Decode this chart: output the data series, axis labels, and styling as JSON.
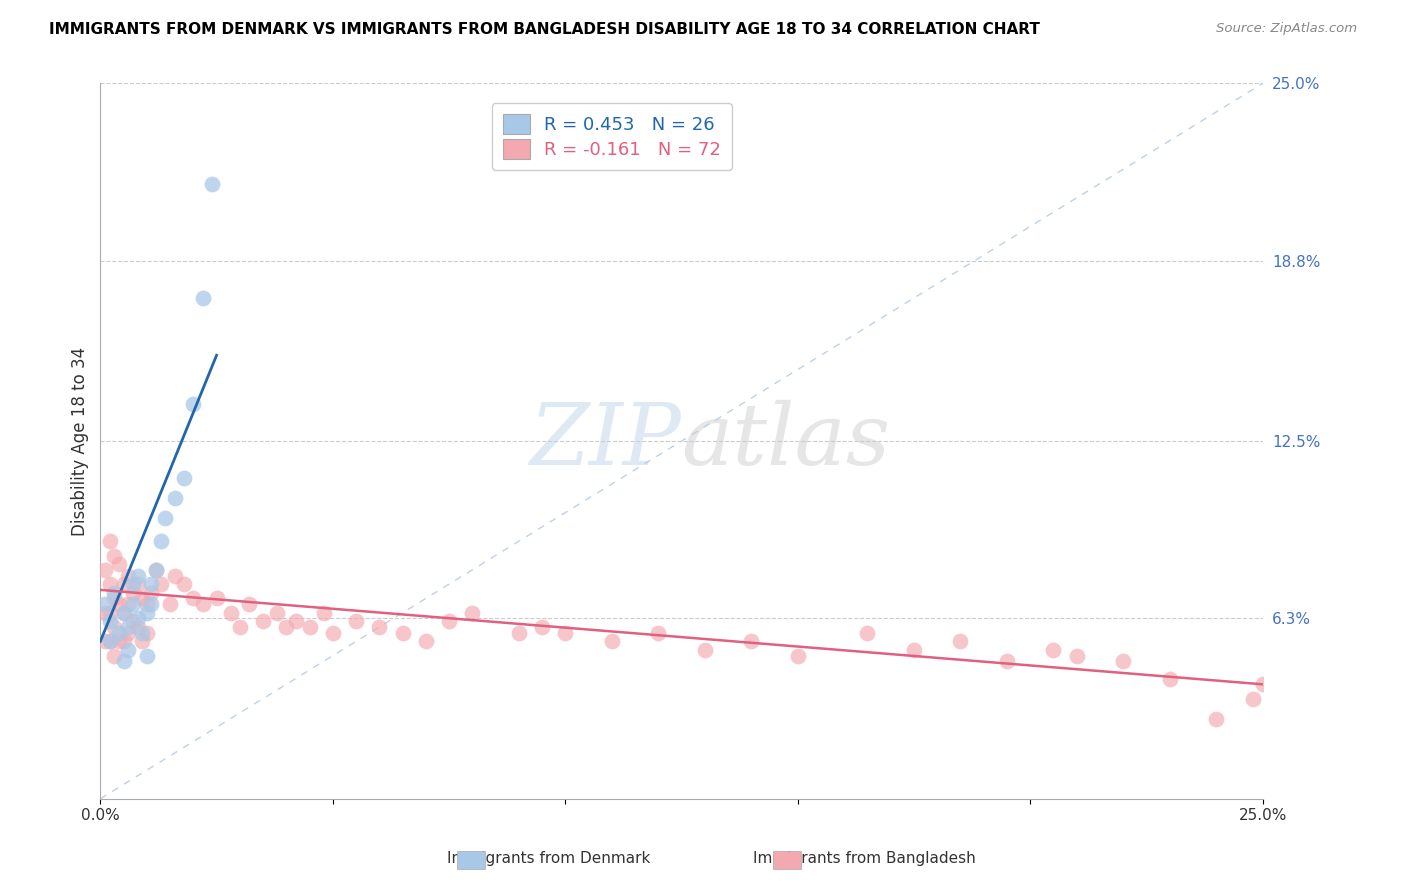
{
  "title": "IMMIGRANTS FROM DENMARK VS IMMIGRANTS FROM BANGLADESH DISABILITY AGE 18 TO 34 CORRELATION CHART",
  "source": "Source: ZipAtlas.com",
  "ylabel": "Disability Age 18 to 34",
  "xlim": [
    0.0,
    0.25
  ],
  "ylim": [
    0.0,
    0.25
  ],
  "xtick_positions": [
    0.0,
    0.05,
    0.1,
    0.15,
    0.2,
    0.25
  ],
  "xticklabels": [
    "0.0%",
    "",
    "",
    "",
    "",
    "25.0%"
  ],
  "ytick_vals": [
    0.0,
    0.063,
    0.125,
    0.188,
    0.25
  ],
  "ytick_labels": [
    "",
    "6.3%",
    "12.5%",
    "18.8%",
    "25.0%"
  ],
  "legend_dk_r": "R = 0.453",
  "legend_dk_n": "N = 26",
  "legend_bd_r": "R = -0.161",
  "legend_bd_n": "N = 72",
  "color_dk_fill": "#a8c8e8",
  "color_bd_fill": "#f4a8b0",
  "color_dk_line": "#2166ac",
  "color_bd_line": "#e06080",
  "color_diag": "#b8cce4",
  "watermark_zip": "ZIP",
  "watermark_atlas": "atlas",
  "denmark_x": [
    0.001,
    0.002,
    0.002,
    0.003,
    0.004,
    0.005,
    0.005,
    0.006,
    0.006,
    0.007,
    0.007,
    0.008,
    0.008,
    0.009,
    0.01,
    0.01,
    0.011,
    0.011,
    0.012,
    0.013,
    0.014,
    0.016,
    0.018,
    0.02,
    0.022,
    0.024
  ],
  "denmark_y": [
    0.068,
    0.062,
    0.055,
    0.072,
    0.058,
    0.065,
    0.048,
    0.06,
    0.052,
    0.075,
    0.068,
    0.063,
    0.078,
    0.058,
    0.065,
    0.05,
    0.068,
    0.075,
    0.08,
    0.09,
    0.098,
    0.105,
    0.112,
    0.138,
    0.175,
    0.215
  ],
  "bangladesh_x": [
    0.001,
    0.001,
    0.001,
    0.002,
    0.002,
    0.002,
    0.002,
    0.003,
    0.003,
    0.003,
    0.003,
    0.004,
    0.004,
    0.004,
    0.005,
    0.005,
    0.005,
    0.006,
    0.006,
    0.006,
    0.007,
    0.007,
    0.008,
    0.008,
    0.009,
    0.009,
    0.01,
    0.01,
    0.011,
    0.012,
    0.013,
    0.015,
    0.016,
    0.018,
    0.02,
    0.022,
    0.025,
    0.028,
    0.03,
    0.032,
    0.035,
    0.038,
    0.04,
    0.042,
    0.045,
    0.048,
    0.05,
    0.055,
    0.06,
    0.065,
    0.07,
    0.075,
    0.08,
    0.09,
    0.095,
    0.1,
    0.11,
    0.12,
    0.13,
    0.14,
    0.15,
    0.165,
    0.175,
    0.185,
    0.195,
    0.205,
    0.21,
    0.22,
    0.23,
    0.24,
    0.248,
    0.25
  ],
  "bangladesh_y": [
    0.08,
    0.065,
    0.055,
    0.09,
    0.075,
    0.065,
    0.055,
    0.085,
    0.07,
    0.06,
    0.05,
    0.082,
    0.068,
    0.055,
    0.075,
    0.065,
    0.055,
    0.078,
    0.068,
    0.058,
    0.072,
    0.062,
    0.075,
    0.06,
    0.07,
    0.055,
    0.068,
    0.058,
    0.072,
    0.08,
    0.075,
    0.068,
    0.078,
    0.075,
    0.07,
    0.068,
    0.07,
    0.065,
    0.06,
    0.068,
    0.062,
    0.065,
    0.06,
    0.062,
    0.06,
    0.065,
    0.058,
    0.062,
    0.06,
    0.058,
    0.055,
    0.062,
    0.065,
    0.058,
    0.06,
    0.058,
    0.055,
    0.058,
    0.052,
    0.055,
    0.05,
    0.058,
    0.052,
    0.055,
    0.048,
    0.052,
    0.05,
    0.048,
    0.042,
    0.028,
    0.035,
    0.04
  ],
  "dk_trend_x": [
    0.0,
    0.025
  ],
  "dk_trend_y": [
    0.055,
    0.155
  ],
  "bd_trend_x": [
    0.0,
    0.25
  ],
  "bd_trend_y": [
    0.073,
    0.04
  ]
}
